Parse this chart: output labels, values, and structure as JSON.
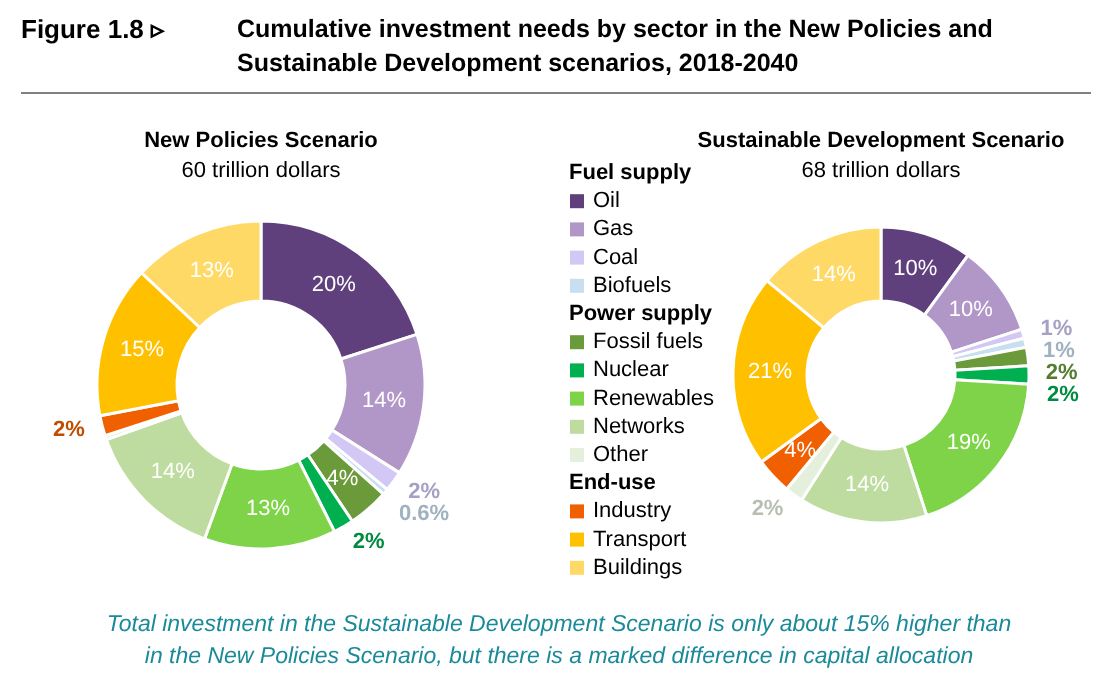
{
  "chart_data": [
    {
      "type": "other",
      "title": "Cumulative investment needs by sector in the New Policies and Sustainable Development scenarios, 2018-2040",
      "annotations": [
        "Figure 1.8 ▹",
        "Total investment in the Sustainable Development Scenario is only about 15% higher than in the New Policies Scenario, but there is a marked difference in capital allocation"
      ]
    },
    {
      "type": "donut",
      "title": "New Policies Scenario",
      "subtitle": "60 trillion dollars",
      "categories": [
        "Oil",
        "Gas",
        "Coal",
        "Biofuels",
        "Fossil fuels",
        "Nuclear",
        "Renewables",
        "Networks",
        "Other",
        "Industry",
        "Transport",
        "Buildings"
      ],
      "values": [
        20,
        14,
        2,
        0.6,
        4,
        2,
        13,
        14,
        0.4,
        2,
        15,
        13
      ],
      "value_labels": [
        "20%",
        "14%",
        "2%",
        "0.6%",
        "4%",
        "2%",
        "13%",
        "14%",
        null,
        "2%",
        "15%",
        "13%"
      ],
      "colors": [
        "#603f7d",
        "#b197c8",
        "#d3c8f5",
        "#c7dff0",
        "#6a9a3a",
        "#00b050",
        "#7ed348",
        "#bedc9f",
        "#e5f0dc",
        "#f06000",
        "#ffc000",
        "#ffd966"
      ],
      "legend": "right",
      "annotations": [
        {
          "text": "Fuel supply",
          "x": "Oil"
        },
        {
          "text": "Power supply",
          "x": "Fossil fuels"
        },
        {
          "text": "End-use",
          "x": "Industry"
        }
      ]
    },
    {
      "type": "donut",
      "title": "Sustainable Development Scenario",
      "subtitle": "68 trillion dollars",
      "categories": [
        null,
        null,
        null,
        null,
        null,
        null,
        null,
        null,
        null,
        null,
        null,
        null
      ],
      "values": [
        10,
        10,
        1,
        1,
        2,
        2,
        19,
        14,
        2,
        4,
        21,
        14
      ],
      "value_labels": [
        "10%",
        "10%",
        "1%",
        "1%",
        "2%",
        "2%",
        "19%",
        "14%",
        "2%",
        "4%",
        "21%",
        "14%"
      ],
      "colors": [
        "#603f7d",
        "#b197c8",
        "#d3c8f5",
        "#c7dff0",
        "#6a9a3a",
        "#00b050",
        "#7ed348",
        "#bedc9f",
        "#e5f0dc",
        "#f06000",
        "#ffc000",
        "#ffd966"
      ]
    }
  ]
}
